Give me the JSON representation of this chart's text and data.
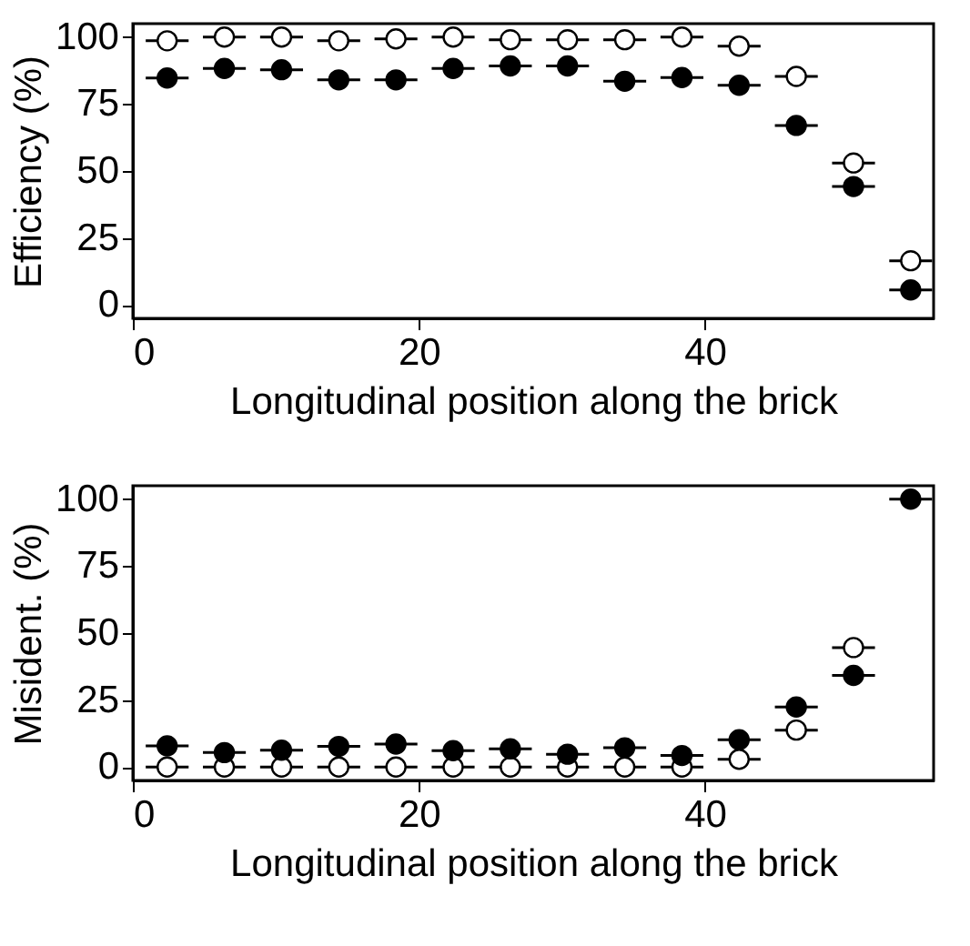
{
  "chart_data": [
    {
      "type": "scatter",
      "xlabel": "Longitudinal position along the brick",
      "ylabel": "Efficiency (%)",
      "x": [
        2.4,
        6.4,
        10.4,
        14.4,
        18.4,
        22.4,
        26.4,
        30.4,
        34.4,
        38.4,
        42.4,
        46.4,
        50.4,
        54.4
      ],
      "xlim": [
        0,
        56
      ],
      "xticks": [
        0,
        20,
        40
      ],
      "ylim": [
        -5,
        105
      ],
      "yticks": [
        0,
        25,
        50,
        75,
        100
      ],
      "grid": false,
      "marker": "circle",
      "series": [
        {
          "color": "#ffffff",
          "values": [
            98.6,
            100,
            100,
            98.6,
            99.3,
            100,
            99,
            99,
            99,
            100,
            96.6,
            85.3,
            53,
            16.5
          ],
          "xerrors": [
            1.5,
            1.5,
            1.5,
            1.5,
            1.5,
            1.5,
            1.5,
            1.5,
            1.5,
            1.5,
            1.5,
            1.5,
            1.5,
            1.5
          ]
        },
        {
          "color": "#000000",
          "values": [
            84.7,
            88.3,
            87.8,
            84,
            84,
            88.3,
            89.2,
            89.2,
            83.5,
            84.9,
            82,
            67,
            44.2,
            5.6
          ],
          "xerrors": [
            1.5,
            1.5,
            1.5,
            1.5,
            1.5,
            1.5,
            1.5,
            1.5,
            1.5,
            1.5,
            1.5,
            1.5,
            1.5,
            1.5
          ]
        }
      ]
    },
    {
      "type": "scatter",
      "xlabel": "Longitudinal position along the brick",
      "ylabel": "Misident. (%)",
      "x": [
        2.4,
        6.4,
        10.4,
        14.4,
        18.4,
        22.4,
        26.4,
        30.4,
        34.4,
        38.4,
        42.4,
        46.4,
        50.4,
        54.4
      ],
      "xlim": [
        0,
        56
      ],
      "xticks": [
        0,
        20,
        40
      ],
      "ylim": [
        -5,
        105
      ],
      "yticks": [
        0,
        25,
        50,
        75,
        100
      ],
      "grid": false,
      "marker": "circle",
      "series": [
        {
          "color": "#ffffff",
          "values": [
            0,
            0,
            0,
            0,
            0,
            0,
            0,
            0,
            0,
            0,
            2.9,
            13.8,
            44.6,
            null
          ],
          "xerrors": [
            1.5,
            1.5,
            1.5,
            1.5,
            1.5,
            1.5,
            1.5,
            1.5,
            1.5,
            1.5,
            1.5,
            1.5,
            1.5,
            null
          ]
        },
        {
          "color": "#000000",
          "values": [
            7.9,
            5.4,
            6.3,
            7.7,
            8.6,
            6.1,
            6.8,
            4.8,
            7.2,
            4.3,
            10.2,
            22.4,
            34.2,
            100
          ],
          "xerrors": [
            1.5,
            1.5,
            1.5,
            1.5,
            1.5,
            1.5,
            1.5,
            1.5,
            1.5,
            1.5,
            1.5,
            1.5,
            1.5,
            1.5
          ]
        }
      ]
    }
  ]
}
